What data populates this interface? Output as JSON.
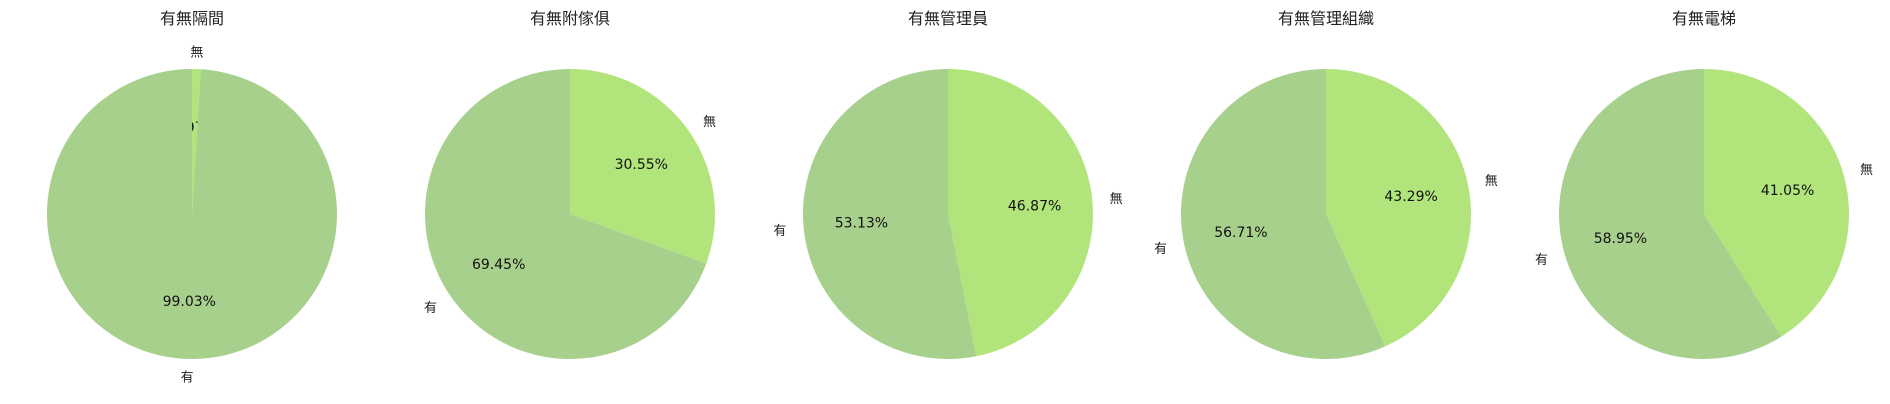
{
  "colors": {
    "有": "#a8d08d",
    "無": "#b1e57c"
  },
  "chart_data": [
    {
      "type": "pie",
      "title": "有無隔間",
      "slices": [
        {
          "label": "無",
          "value": 0.97,
          "pct_label": "0.97%"
        },
        {
          "label": "有",
          "value": 99.03,
          "pct_label": "99.03%"
        }
      ]
    },
    {
      "type": "pie",
      "title": "有無附傢俱",
      "slices": [
        {
          "label": "無",
          "value": 30.55,
          "pct_label": "30.55%"
        },
        {
          "label": "有",
          "value": 69.45,
          "pct_label": "69.45%"
        }
      ]
    },
    {
      "type": "pie",
      "title": "有無管理員",
      "slices": [
        {
          "label": "無",
          "value": 46.87,
          "pct_label": "46.87%"
        },
        {
          "label": "有",
          "value": 53.13,
          "pct_label": "53.13%"
        }
      ]
    },
    {
      "type": "pie",
      "title": "有無管理組織",
      "slices": [
        {
          "label": "無",
          "value": 43.29,
          "pct_label": "43.29%"
        },
        {
          "label": "有",
          "value": 56.71,
          "pct_label": "56.71%"
        }
      ]
    },
    {
      "type": "pie",
      "title": "有無電梯",
      "slices": [
        {
          "label": "無",
          "value": 41.05,
          "pct_label": "41.05%"
        },
        {
          "label": "有",
          "value": 58.95,
          "pct_label": "58.95%"
        }
      ]
    }
  ]
}
